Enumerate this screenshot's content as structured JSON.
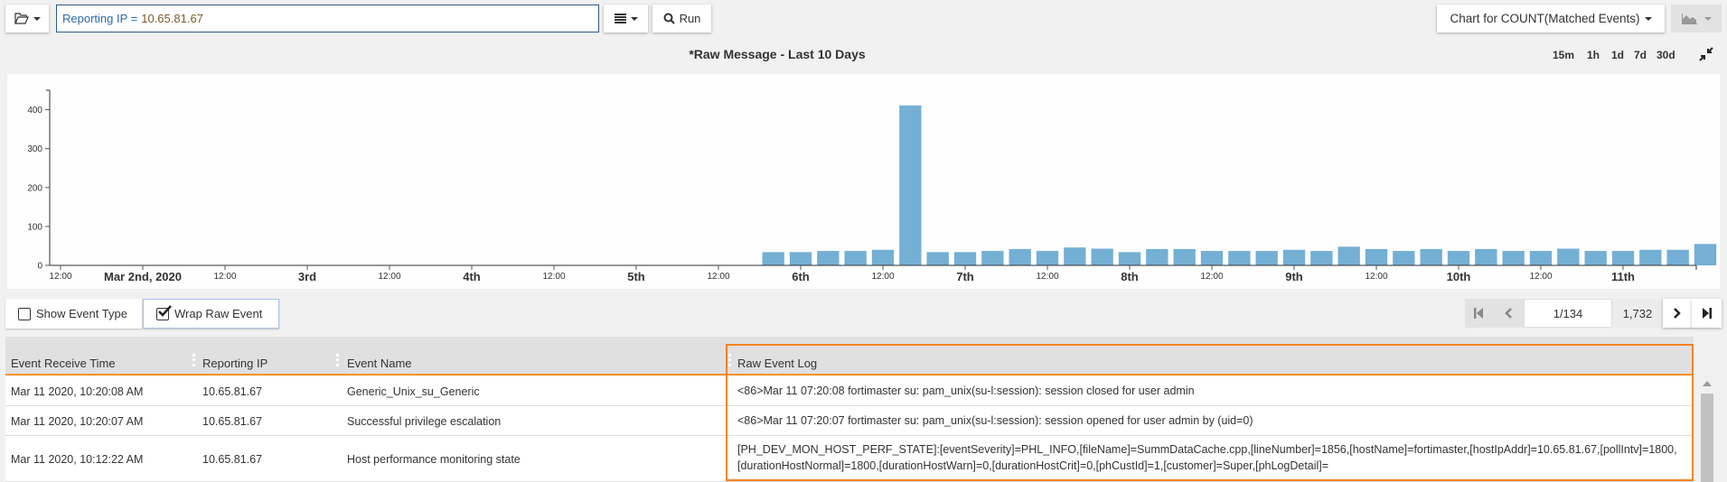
{
  "toolbar": {
    "folder_icon": "folder-open-icon",
    "query_key": "Reporting IP =",
    "query_value": "10.65.81.67",
    "list_icon": "list-icon",
    "run_label": "Run",
    "chart_for_label": "Chart for COUNT(Matched Events)",
    "chart_type_icon": "area-chart-icon"
  },
  "chart_header": {
    "title": "*Raw Message - Last 10 Days",
    "time_buttons": [
      "15m",
      "1h",
      "1d",
      "7d",
      "30d"
    ],
    "collapse_icon": "compress-icon"
  },
  "chart_data": {
    "type": "bar",
    "title": "*Raw Message - Last 10 Days",
    "xlabel": "",
    "ylabel": "",
    "ylim": [
      0,
      450
    ],
    "xlim": [
      "2020-03-01 10:00",
      "2020-03-11 10:30"
    ],
    "grid": false,
    "bar_color": "#74afd4",
    "y_ticks": [
      "0",
      "100",
      "200",
      "300",
      "400"
    ],
    "x_ticks": [
      {
        "t": "2020-03-01 12:00",
        "label": "12:00",
        "major": false
      },
      {
        "t": "2020-03-02 00:00",
        "label": "Mar 2nd, 2020",
        "major": true
      },
      {
        "t": "2020-03-02 12:00",
        "label": "12:00",
        "major": false
      },
      {
        "t": "2020-03-03 00:00",
        "label": "3rd",
        "major": true
      },
      {
        "t": "2020-03-03 12:00",
        "label": "12:00",
        "major": false
      },
      {
        "t": "2020-03-04 00:00",
        "label": "4th",
        "major": true
      },
      {
        "t": "2020-03-04 12:00",
        "label": "12:00",
        "major": false
      },
      {
        "t": "2020-03-05 00:00",
        "label": "5th",
        "major": true
      },
      {
        "t": "2020-03-05 12:00",
        "label": "12:00",
        "major": false
      },
      {
        "t": "2020-03-06 00:00",
        "label": "6th",
        "major": true
      },
      {
        "t": "2020-03-06 12:00",
        "label": "12:00",
        "major": false
      },
      {
        "t": "2020-03-07 00:00",
        "label": "7th",
        "major": true
      },
      {
        "t": "2020-03-07 12:00",
        "label": "12:00",
        "major": false
      },
      {
        "t": "2020-03-08 00:00",
        "label": "8th",
        "major": true
      },
      {
        "t": "2020-03-08 12:00",
        "label": "12:00",
        "major": false
      },
      {
        "t": "2020-03-09 00:00",
        "label": "9th",
        "major": true
      },
      {
        "t": "2020-03-09 12:00",
        "label": "12:00",
        "major": false
      },
      {
        "t": "2020-03-10 00:00",
        "label": "10th",
        "major": true
      },
      {
        "t": "2020-03-10 12:00",
        "label": "12:00",
        "major": false
      },
      {
        "t": "2020-03-11 00:00",
        "label": "11th",
        "major": true
      }
    ],
    "bin_hours": 4,
    "x": [
      "2020-03-05 18:00",
      "2020-03-05 22:00",
      "2020-03-06 02:00",
      "2020-03-06 06:00",
      "2020-03-06 10:00",
      "2020-03-06 14:00",
      "2020-03-06 18:00",
      "2020-03-06 22:00",
      "2020-03-07 02:00",
      "2020-03-07 06:00",
      "2020-03-07 10:00",
      "2020-03-07 14:00",
      "2020-03-07 18:00",
      "2020-03-07 22:00",
      "2020-03-08 02:00",
      "2020-03-08 06:00",
      "2020-03-08 10:00",
      "2020-03-08 14:00",
      "2020-03-08 18:00",
      "2020-03-08 22:00",
      "2020-03-09 02:00",
      "2020-03-09 06:00",
      "2020-03-09 10:00",
      "2020-03-09 14:00",
      "2020-03-09 18:00",
      "2020-03-09 22:00",
      "2020-03-10 02:00",
      "2020-03-10 06:00",
      "2020-03-10 10:00",
      "2020-03-10 14:00",
      "2020-03-10 18:00",
      "2020-03-10 22:00",
      "2020-03-11 02:00",
      "2020-03-11 06:00",
      "2020-03-11 10:00"
    ],
    "values": [
      34,
      34,
      37,
      37,
      40,
      411,
      34,
      34,
      37,
      42,
      37,
      46,
      43,
      34,
      42,
      42,
      37,
      37,
      37,
      40,
      37,
      48,
      42,
      37,
      42,
      37,
      42,
      37,
      37,
      43,
      37,
      37,
      40,
      40,
      55
    ]
  },
  "options": {
    "show_event_type": {
      "label": "Show Event Type",
      "checked": false
    },
    "wrap_raw_event": {
      "label": "Wrap Raw Event",
      "checked": true
    }
  },
  "pagination": {
    "page": "1/134",
    "total": "1,732"
  },
  "table": {
    "columns": [
      "Event Receive Time",
      "Reporting IP",
      "Event Name",
      "Raw Event Log"
    ],
    "rows": [
      {
        "time": "Mar 11 2020, 10:20:08 AM",
        "ip": "10.65.81.67",
        "name": "Generic_Unix_su_Generic",
        "raw": "<86>Mar 11 07:20:08 fortimaster su: pam_unix(su-l:session): session closed for user admin"
      },
      {
        "time": "Mar 11 2020, 10:20:07 AM",
        "ip": "10.65.81.67",
        "name": "Successful privilege escalation",
        "raw": "<86>Mar 11 07:20:07 fortimaster su: pam_unix(su-l:session): session opened for user admin by (uid=0)"
      },
      {
        "time": "Mar 11 2020, 10:12:22 AM",
        "ip": "10.65.81.67",
        "name": "Host performance monitoring state",
        "raw": "[PH_DEV_MON_HOST_PERF_STATE]:[eventSeverity]=PHL_INFO,[fileName]=SummDataCache.cpp,[lineNumber]=1856,[hostName]=fortimaster,[hostIpAddr]=10.65.81.67,[pollIntv]=1800,[durationHostNormal]=1800,[durationHostWarn]=0,[durationHostCrit]=0,[phCustId]=1,[customer]=Super,[phLogDetail]="
      }
    ]
  },
  "highlight_color": "#f58220"
}
